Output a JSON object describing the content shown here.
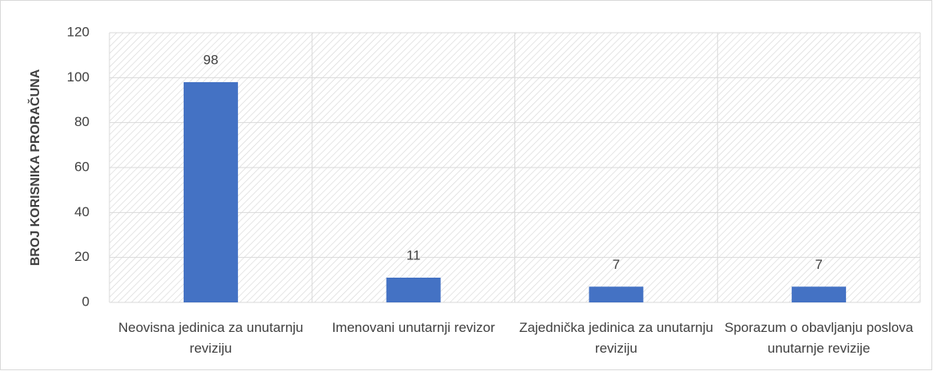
{
  "chart_data": {
    "type": "bar",
    "y_label": "BROJ KORISNIKA  PRORAČUNA",
    "categories": [
      "Neovisna jedinica za unutarnju reviziju",
      "Imenovani unutarnji revizor",
      "Zajednička jedinica za unutarnju reviziju",
      "Sporazum o obavljanju poslova unutarnje revizije"
    ],
    "values": [
      98,
      11,
      7,
      7
    ],
    "color": "#4472c4",
    "ylim": [
      0,
      120
    ],
    "yticks": [
      0,
      20,
      40,
      60,
      80,
      100,
      120
    ],
    "grid": true
  }
}
